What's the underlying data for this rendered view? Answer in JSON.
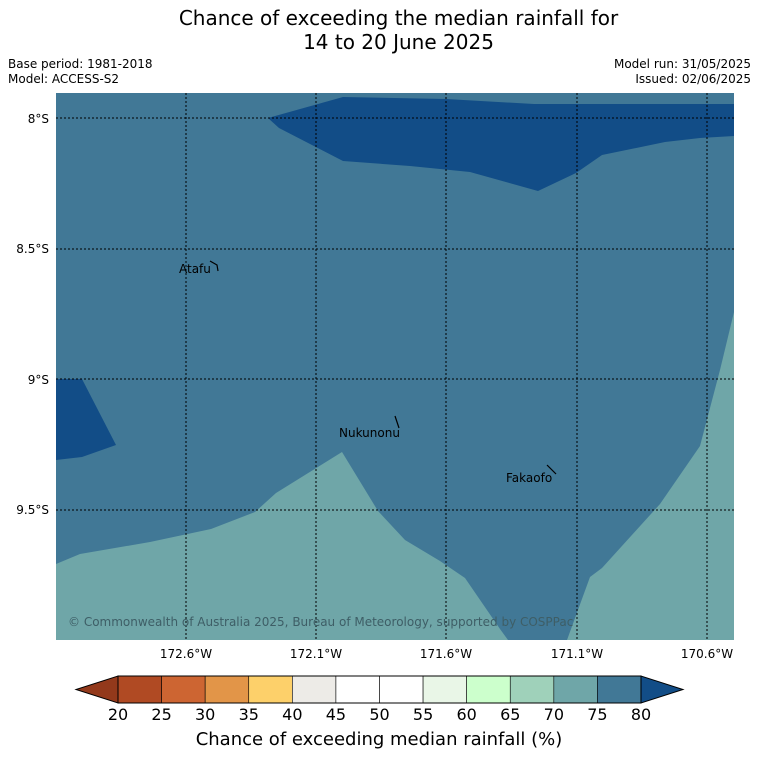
{
  "title_line1": "Chance of exceeding the median rainfall for",
  "title_line2": "14 to 20 June 2025",
  "meta": {
    "base_period": "Base period: 1981-2018",
    "model": "Model: ACCESS-S2",
    "model_run": "Model run: 31/05/2025",
    "issued": "Issued: 02/06/2025"
  },
  "axes": {
    "lat_labels": [
      "8°S",
      "8.5°S",
      "9°S",
      "9.5°S"
    ],
    "lon_labels": [
      "172.6°W",
      "172.1°W",
      "171.6°W",
      "171.1°W",
      "170.6°W"
    ]
  },
  "places": [
    {
      "name": "Atafu"
    },
    {
      "name": "Nukunonu"
    },
    {
      "name": "Fakaofo"
    }
  ],
  "copyright": "© Commonwealth of Australia 2025, Bureau of Meteorology, supported by COSPPac",
  "colorbar": {
    "ticks": [
      "20",
      "25",
      "30",
      "35",
      "40",
      "45",
      "50",
      "55",
      "60",
      "65",
      "70",
      "75",
      "80"
    ],
    "colors": [
      "#b04a23",
      "#cd6532",
      "#e29548",
      "#fdd06a",
      "#edebe7",
      "#ffffff",
      "#ffffff",
      "#e9f6e7",
      "#ccffcc",
      "#9fd1ba",
      "#6fa6a8",
      "#417896"
    ],
    "under_color": "#93391b",
    "over_color": "#124d87",
    "label": "Chance of exceeding median rainfall (%)"
  },
  "map_colors": {
    "c75_80": "#417896",
    "c80plus": "#124d87",
    "c70_75": "#6fa6a8"
  }
}
